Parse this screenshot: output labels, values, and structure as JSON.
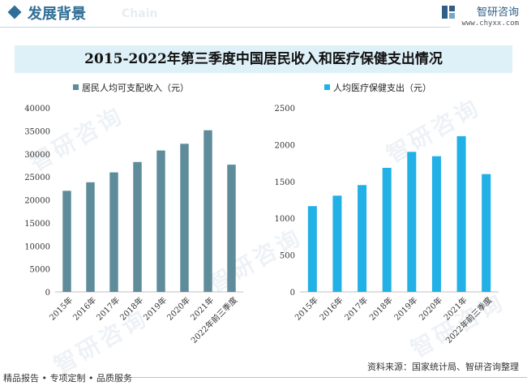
{
  "header": {
    "section_title": "发展背景",
    "watermark_word": "Chain",
    "brand_name": "智研咨询",
    "brand_url": "www.chyxx.com"
  },
  "main_title": "2015-2022年第三季度中国居民收入和医疗保健支出情况",
  "chart_data": [
    {
      "type": "bar",
      "legend": "居民人均可支配收入（元）",
      "categories": [
        "2015年",
        "2016年",
        "2017年",
        "2018年",
        "2019年",
        "2020年",
        "2021年",
        "2022年前三季度"
      ],
      "values": [
        21966,
        23821,
        25974,
        28228,
        30733,
        32189,
        35128,
        27650
      ],
      "ylim": [
        0,
        40000
      ],
      "yticks": [
        0,
        5000,
        10000,
        15000,
        20000,
        25000,
        30000,
        35000,
        40000
      ],
      "color": "#5e8c9a"
    },
    {
      "type": "bar",
      "legend": "人均医疗保健支出（元）",
      "categories": [
        "2015年",
        "2016年",
        "2017年",
        "2018年",
        "2019年",
        "2020年",
        "2021年",
        "2022年前三季度"
      ],
      "values": [
        1165,
        1307,
        1451,
        1685,
        1902,
        1843,
        2115,
        1600
      ],
      "ylim": [
        0,
        2500
      ],
      "yticks": [
        0,
        500,
        1000,
        1500,
        2000,
        2500
      ],
      "color": "#22b1e6"
    }
  ],
  "footer": {
    "tagline": "精品报告 • 专项定制 • 品质服务",
    "source": "资料来源：国家统计局、智研咨询整理"
  }
}
